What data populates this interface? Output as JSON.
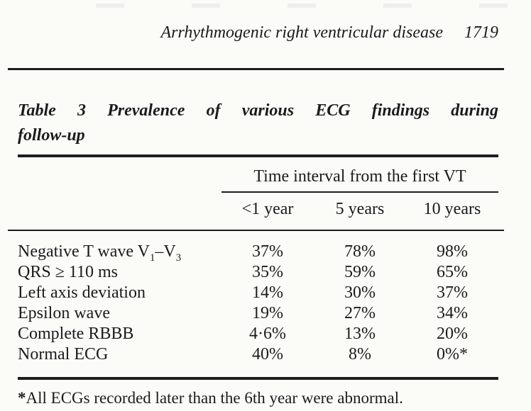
{
  "page": {
    "running_head": "Arrhythmogenic right ventricular disease",
    "page_number": "1719"
  },
  "table": {
    "caption_label": "Table 3",
    "caption_rest": "Prevalence of various ECG findings during",
    "caption_line2": "follow-up",
    "spanner": "Time interval from the first VT",
    "columns": [
      "<1 year",
      "5 years",
      "10 years"
    ],
    "rows": [
      {
        "label": "Negative T wave V",
        "sub1": "1",
        "label2": "–V",
        "sub2": "3",
        "values": [
          "37%",
          "78%",
          "98%"
        ]
      },
      {
        "label": "QRS ≥ 110 ms",
        "values": [
          "35%",
          "59%",
          "65%"
        ]
      },
      {
        "label": "Left axis deviation",
        "values": [
          "14%",
          "30%",
          "37%"
        ]
      },
      {
        "label": "Epsilon wave",
        "values": [
          "19%",
          "27%",
          "34%"
        ]
      },
      {
        "label": "Complete RBBB",
        "values": [
          "4·6%",
          "13%",
          "20%"
        ]
      },
      {
        "label": "Normal ECG",
        "values": [
          "40%",
          "8%",
          "0%*"
        ]
      }
    ],
    "footnote_marker": "*",
    "footnote": "All ECGs recorded later than the 6th year were abnormal."
  },
  "chart_data": {
    "type": "table",
    "title": "Table 3 Prevalence of various ECG findings during follow-up",
    "column_group": "Time interval from the first VT",
    "categories": [
      "<1 year",
      "5 years",
      "10 years"
    ],
    "series": [
      {
        "name": "Negative T wave V1–V3",
        "values": [
          "37%",
          "78%",
          "98%"
        ]
      },
      {
        "name": "QRS ≥ 110 ms",
        "values": [
          "35%",
          "59%",
          "65%"
        ]
      },
      {
        "name": "Left axis deviation",
        "values": [
          "14%",
          "30%",
          "37%"
        ]
      },
      {
        "name": "Epsilon wave",
        "values": [
          "19%",
          "27%",
          "34%"
        ]
      },
      {
        "name": "Complete RBBB",
        "values": [
          "4·6%",
          "13%",
          "20%"
        ]
      },
      {
        "name": "Normal ECG",
        "values": [
          "40%",
          "8%",
          "0%*"
        ]
      }
    ]
  },
  "colors": {
    "ink": "#1b1b1b",
    "paper": "#fbfbf8",
    "rule": "#1d1d1d"
  }
}
